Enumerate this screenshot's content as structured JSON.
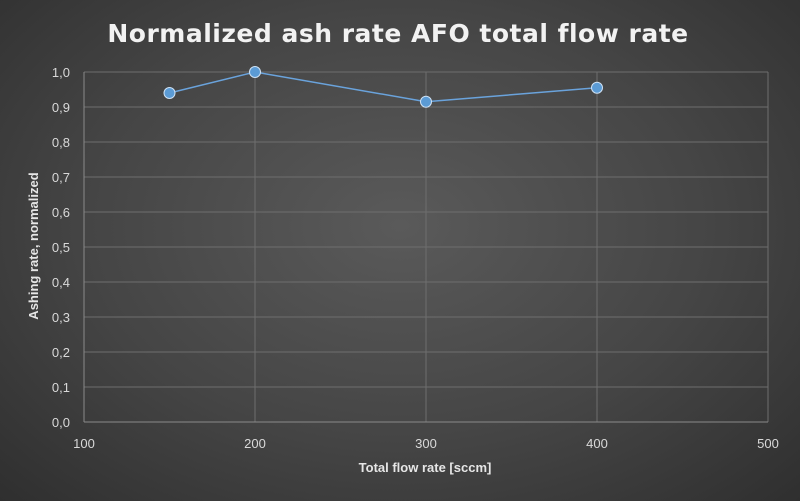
{
  "chart_data": {
    "type": "line",
    "title": "Normalized ash rate AFO total flow rate",
    "xlabel": "Total flow rate [sccm]",
    "ylabel": "Ashing rate, normalized",
    "xlim": [
      100,
      500
    ],
    "ylim": [
      0,
      1
    ],
    "xticks": [
      100,
      200,
      300,
      400,
      500
    ],
    "yticks": [
      "0,0",
      "0,1",
      "0,2",
      "0,3",
      "0,4",
      "0,5",
      "0,6",
      "0,7",
      "0,8",
      "0,9",
      "1,0"
    ],
    "grid": true,
    "series": [
      {
        "x": [
          150,
          200,
          300,
          400
        ],
        "values": [
          0.94,
          1.0,
          0.915,
          0.955
        ],
        "color": "#5b9bd5"
      }
    ]
  }
}
